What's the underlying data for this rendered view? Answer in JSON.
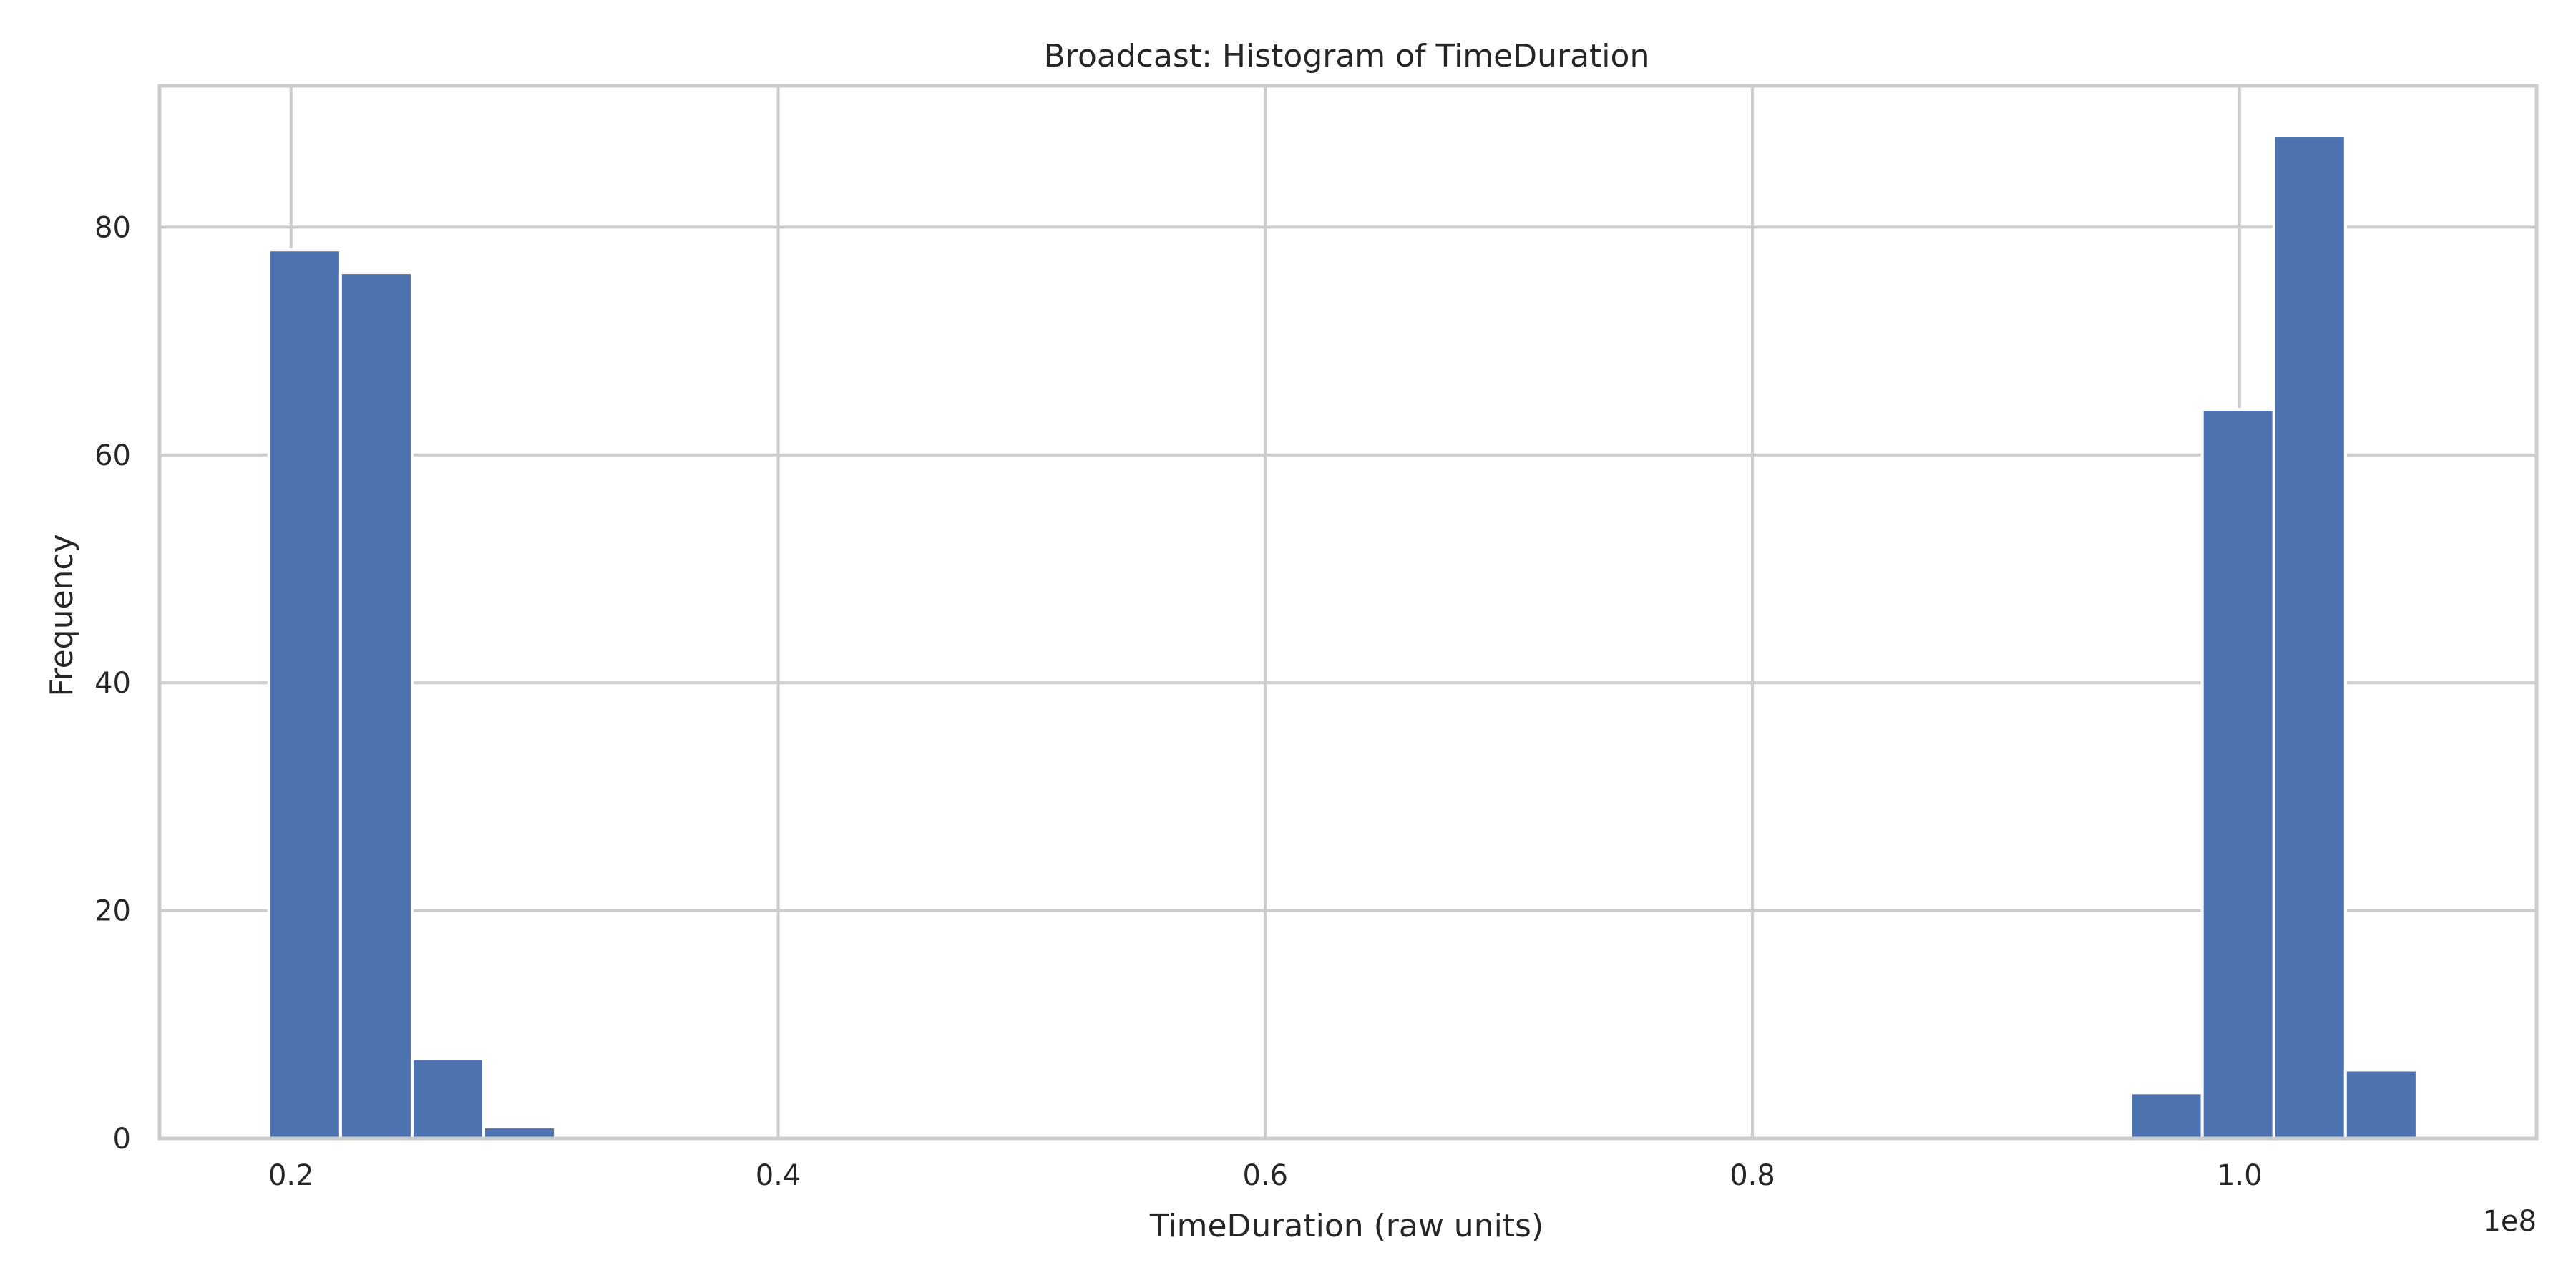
{
  "chart_data": {
    "type": "bar",
    "title": "Broadcast: Histogram of TimeDuration",
    "xlabel": "TimeDuration (raw units)",
    "ylabel": "Frequency",
    "x_offset_label": "1e8",
    "xlim": [
      0.146,
      1.122
    ],
    "ylim": [
      0,
      92.4
    ],
    "grid": true,
    "bar_color": "#4c72b0",
    "xticks": [
      0.2,
      0.4,
      0.6,
      0.8,
      1.0
    ],
    "xtick_labels": [
      "0.2",
      "0.4",
      "0.6",
      "0.8",
      "1.0"
    ],
    "yticks": [
      0,
      20,
      40,
      60,
      80
    ],
    "ytick_labels": [
      "0",
      "20",
      "40",
      "60",
      "80"
    ],
    "bin_width": 0.0294,
    "bins": [
      {
        "x0": 0.1909,
        "count": 78
      },
      {
        "x0": 0.2203,
        "count": 76
      },
      {
        "x0": 0.2497,
        "count": 7
      },
      {
        "x0": 0.2791,
        "count": 1
      },
      {
        "x0": 0.3085,
        "count": 0
      },
      {
        "x0": 0.3379,
        "count": 0
      },
      {
        "x0": 0.3673,
        "count": 0
      },
      {
        "x0": 0.3967,
        "count": 0
      },
      {
        "x0": 0.4261,
        "count": 0
      },
      {
        "x0": 0.4555,
        "count": 0
      },
      {
        "x0": 0.4849,
        "count": 0
      },
      {
        "x0": 0.5143,
        "count": 0
      },
      {
        "x0": 0.5437,
        "count": 0
      },
      {
        "x0": 0.5731,
        "count": 0
      },
      {
        "x0": 0.6025,
        "count": 0
      },
      {
        "x0": 0.6319,
        "count": 0
      },
      {
        "x0": 0.6613,
        "count": 0
      },
      {
        "x0": 0.6907,
        "count": 0
      },
      {
        "x0": 0.7201,
        "count": 0
      },
      {
        "x0": 0.7495,
        "count": 0
      },
      {
        "x0": 0.7789,
        "count": 0
      },
      {
        "x0": 0.8083,
        "count": 0
      },
      {
        "x0": 0.8377,
        "count": 0
      },
      {
        "x0": 0.8671,
        "count": 0
      },
      {
        "x0": 0.8965,
        "count": 0
      },
      {
        "x0": 0.9259,
        "count": 0
      },
      {
        "x0": 0.9553,
        "count": 4
      },
      {
        "x0": 0.9847,
        "count": 64
      },
      {
        "x0": 1.0141,
        "count": 88
      },
      {
        "x0": 1.0435,
        "count": 6
      }
    ]
  }
}
